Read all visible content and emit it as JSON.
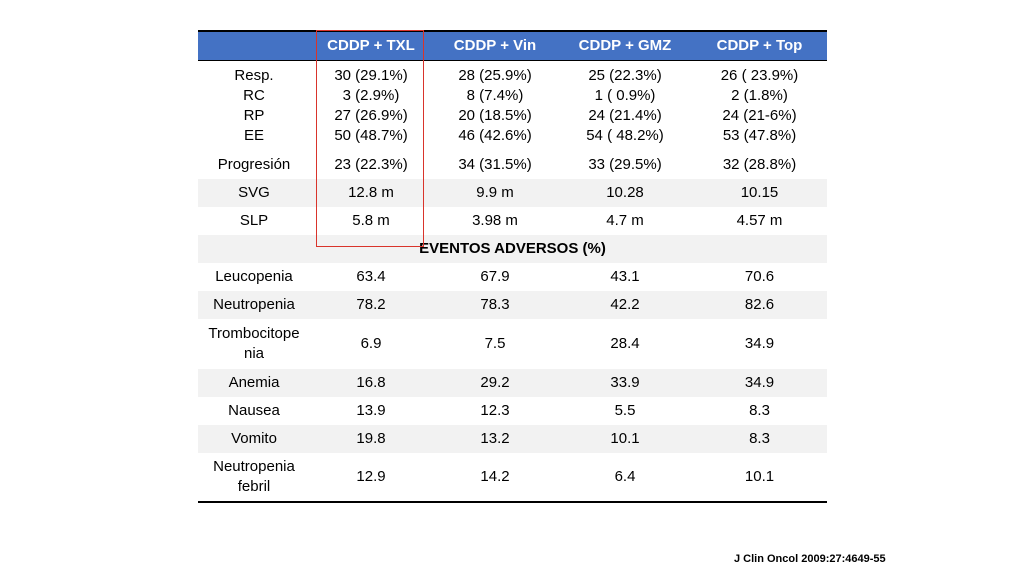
{
  "table": {
    "headers": [
      "",
      "CDDP + TXL",
      "CDDP + Vin",
      "CDDP + GMZ",
      "CDDP + Top"
    ],
    "response_block": {
      "labels": "Resp.\nRC\nRP\nEE",
      "c1": "30 (29.1%)\n3 (2.9%)\n27 (26.9%)\n50 (48.7%)",
      "c2": "28  (25.9%)\n8  (7.4%)\n20 (18.5%)\n46 (42.6%)",
      "c3": "25 (22.3%)\n1  ( 0.9%)\n24  (21.4%)\n54  ( 48.2%)",
      "c4": "26 ( 23.9%)\n2  (1.8%)\n24  (21-6%)\n53 (47.8%)"
    },
    "progresion": [
      "Progresión",
      "23 (22.3%)",
      "34 (31.5%)",
      "33 (29.5%)",
      "32 (28.8%)"
    ],
    "svg": [
      "SVG",
      "12.8 m",
      "9.9 m",
      "10.28",
      "10.15"
    ],
    "slp": [
      "SLP",
      "5.8 m",
      "3.98 m",
      "4.7 m",
      "4.57 m"
    ],
    "adverse_title": "EVENTOS ADVERSOS (%)",
    "adverse_rows": [
      [
        "Leucopenia",
        "63.4",
        "67.9",
        "43.1",
        "70.6"
      ],
      [
        "Neutropenia",
        "78.2",
        "78.3",
        "42.2",
        "82.6"
      ],
      [
        "Trombocitope\nnia",
        "6.9",
        "7.5",
        "28.4",
        "34.9"
      ],
      [
        "Anemia",
        "16.8",
        "29.2",
        "33.9",
        "34.9"
      ],
      [
        "Nausea",
        "13.9",
        "12.3",
        "5.5",
        "8.3"
      ],
      [
        "Vomito",
        "19.8",
        "13.2",
        "10.1",
        "8.3"
      ],
      [
        "Neutropenia\nfebril",
        "12.9",
        "14.2",
        "6.4",
        "10.1"
      ]
    ]
  },
  "citation": "J Clin Oncol 2009:27:4649-55",
  "colors": {
    "header_bg": "#4472c4",
    "highlight": "#d9342b",
    "stripe": "#f2f2f2"
  }
}
